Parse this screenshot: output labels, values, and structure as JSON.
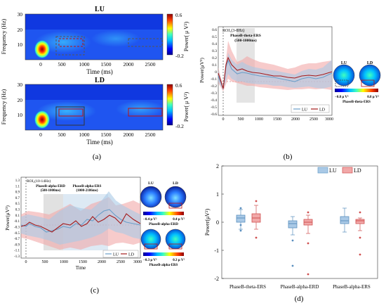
{
  "panel_labels": {
    "a": "(a)",
    "b": "(b)",
    "c": "(c)",
    "d": "(d)"
  },
  "colors": {
    "lu": "#6a9ec9",
    "ld": "#a41a1a",
    "lu_fill": "#a9c9e6",
    "ld_fill": "#f1a8a8"
  },
  "panel_a": {
    "top_title": "LU",
    "bottom_title": "LD",
    "ylabel": "Frequency (Hz)",
    "xlabel": "Time (ms)",
    "yticks": [
      "0",
      "10",
      "20",
      "30"
    ],
    "xticks": [
      "0",
      "500",
      "1000",
      "1500",
      "2000",
      "2500"
    ],
    "colorbar_label": "Power( μ V²)",
    "colorbar_max": "0.6",
    "colorbar_min": "-0.2"
  },
  "panel_b": {
    "ylabel": "Power(μV²)",
    "roi_label": "ROI₁(3-8Hz)",
    "window_label": "PhaseB-theta-ERS",
    "window_range": "(500-1000ms)",
    "xticks": [
      "0",
      "500",
      "1000",
      "1500",
      "2000",
      "2500",
      "3000"
    ],
    "yticks": [
      "0.6",
      "0.5",
      "0.4",
      "0.3",
      "0.2",
      "0.1",
      "0",
      "-0.1",
      "-0.2",
      "-0.3",
      "-0.4",
      "-0.5",
      "-0.6"
    ],
    "legend": [
      "LU",
      "LD"
    ],
    "topo_labels": [
      "LU",
      "LD"
    ],
    "cbar_min": "−0.8 μ V²",
    "cbar_max": "0.8 μ V²",
    "topo_caption": "PhaseB-theta-ERS"
  },
  "panel_c": {
    "ylabel": "Power(μV²)",
    "xlabel": "Time",
    "roi_label": "ROI₂(10-14Hz)",
    "erd_label": "PhaseB-alpha-ERD",
    "erd_range": "(500-1000ms)",
    "ers_label": "PhaseB-alpha-ERS",
    "ers_range": "(1000-2186ms)",
    "xticks": [
      "0",
      "500",
      "1000",
      "1500",
      "2000",
      "2500",
      "3000"
    ],
    "yticks": [
      "1.3",
      "1.1",
      "0.9",
      "0.7",
      "0.5",
      "0.3",
      "0.1",
      "-0.1",
      "-0.3",
      "-0.5",
      "-0.7",
      "-0.9",
      "-1.1",
      "-1.3"
    ],
    "legend": [
      "LU",
      "LD"
    ],
    "topo_labels": [
      "LU",
      "LD"
    ],
    "topo1_min": "−0.4 μ V²",
    "topo1_max": "0.4 μ V²",
    "topo1_caption": "PhaseB-alpha-ERD",
    "topo2_min": "−0.3 μ V²",
    "topo2_max": "0.3 μ V²",
    "topo2_caption": "PhaseB-alpha-ERS"
  },
  "chart_data": {
    "type": "box",
    "ylabel": "Power(μV²)",
    "ylim": [
      -2,
      2
    ],
    "yticks": [
      "2",
      "1",
      "0",
      "-1",
      "-2"
    ],
    "categories": [
      "PhaseB-theta-ERS",
      "PhaseB-alpha-ERD",
      "PhaseB-alpha-ERS"
    ],
    "series": [
      {
        "name": "LU",
        "boxes": [
          {
            "whisker_low": -0.25,
            "q1": 0.0,
            "median": 0.15,
            "q3": 0.25,
            "whisker_high": 0.45,
            "outliers": [
              -0.3,
              -0.1,
              0.5
            ]
          },
          {
            "whisker_low": -0.45,
            "q1": -0.2,
            "median": -0.05,
            "q3": 0.05,
            "whisker_high": 0.2,
            "outliers": [
              -0.65,
              -1.55
            ]
          },
          {
            "whisker_low": -0.35,
            "q1": -0.05,
            "median": 0.05,
            "q3": 0.2,
            "whisker_high": 0.5,
            "outliers": []
          }
        ]
      },
      {
        "name": "LD",
        "boxes": [
          {
            "whisker_low": -0.25,
            "q1": 0.0,
            "median": 0.15,
            "q3": 0.3,
            "whisker_high": 0.6,
            "outliers": [
              0.75,
              -0.55
            ]
          },
          {
            "whisker_low": -0.4,
            "q1": -0.1,
            "median": 0.0,
            "q3": 0.1,
            "whisker_high": 0.25,
            "outliers": [
              0.35,
              -0.75,
              -1.85
            ]
          },
          {
            "whisker_low": -0.3,
            "q1": -0.05,
            "median": 0.05,
            "q3": 0.1,
            "whisker_high": 0.15,
            "outliers": [
              0.35,
              -0.55,
              -1.15
            ]
          }
        ]
      }
    ],
    "legend": [
      "LU",
      "LD"
    ],
    "legend_position": "top-right"
  }
}
